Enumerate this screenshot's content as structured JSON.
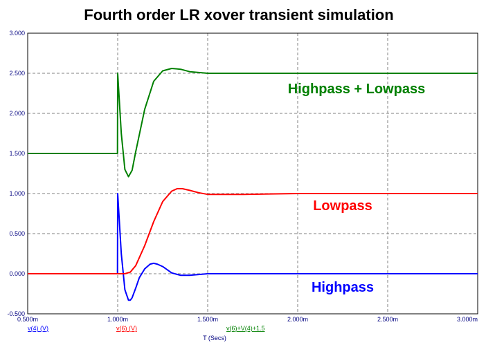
{
  "chart_data": {
    "type": "line",
    "title": "Fourth order LR xover transient simulation",
    "xlabel": "T (Secs)",
    "ylabel": "",
    "xlim": [
      0.0005,
      0.003
    ],
    "ylim": [
      -0.5,
      3.0
    ],
    "grid": true,
    "x_ticks": [
      0.0005,
      0.001,
      0.0015,
      0.002,
      0.0025,
      0.003
    ],
    "x_tick_labels": [
      "0.500m",
      "1.000m",
      "1.500m",
      "2.000m",
      "2.500m",
      "3.000m"
    ],
    "y_ticks": [
      -0.5,
      0.0,
      0.5,
      1.0,
      1.5,
      2.0,
      2.5,
      3.0
    ],
    "y_tick_labels": [
      "-0.500",
      "0.000",
      "0.500",
      "1.000",
      "1.500",
      "2.000",
      "2.500",
      "3.000"
    ],
    "legend_placement": "bottom",
    "series": [
      {
        "name": "v(4) (V)",
        "color": "#0000ff",
        "x": [
          0.0005,
          0.000999,
          0.001,
          0.00102,
          0.00104,
          0.00106,
          0.00107,
          0.00108,
          0.0011,
          0.00112,
          0.00115,
          0.00118,
          0.0012,
          0.00122,
          0.00125,
          0.0013,
          0.00135,
          0.0014,
          0.0015,
          0.0016,
          0.002,
          0.003
        ],
        "y": [
          0.0,
          0.0,
          1.0,
          0.25,
          -0.2,
          -0.33,
          -0.33,
          -0.3,
          -0.18,
          -0.05,
          0.06,
          0.12,
          0.13,
          0.12,
          0.09,
          0.01,
          -0.02,
          -0.02,
          0.0,
          0.0,
          0.0,
          0.0
        ]
      },
      {
        "name": "v(6) (V)",
        "color": "#ff0000",
        "x": [
          0.0005,
          0.001,
          0.00104,
          0.00107,
          0.0011,
          0.00115,
          0.0012,
          0.00125,
          0.0013,
          0.00133,
          0.00136,
          0.0014,
          0.00145,
          0.0015,
          0.0017,
          0.002,
          0.003
        ],
        "y": [
          0.0,
          0.0,
          0.0,
          0.02,
          0.1,
          0.35,
          0.65,
          0.9,
          1.03,
          1.06,
          1.06,
          1.04,
          1.01,
          0.99,
          0.99,
          1.0,
          1.0
        ],
        "annotation": "Lowpass"
      },
      {
        "name": "v(6)+V(4)+1.5",
        "color": "#008000",
        "x": [
          0.0005,
          0.000999,
          0.001,
          0.00102,
          0.00104,
          0.00106,
          0.00108,
          0.0011,
          0.00115,
          0.0012,
          0.00125,
          0.0013,
          0.00135,
          0.0014,
          0.0015,
          0.0016,
          0.002,
          0.003
        ],
        "y": [
          1.5,
          1.5,
          2.5,
          1.75,
          1.3,
          1.21,
          1.29,
          1.52,
          2.05,
          2.4,
          2.53,
          2.56,
          2.55,
          2.52,
          2.5,
          2.5,
          2.5,
          2.5
        ]
      }
    ],
    "annotations": [
      {
        "text": "Highpass + Lowpass",
        "color": "#008000"
      },
      {
        "text": "Lowpass",
        "color": "#ff0000"
      },
      {
        "text": "Highpass",
        "color": "#0000ff"
      }
    ]
  }
}
